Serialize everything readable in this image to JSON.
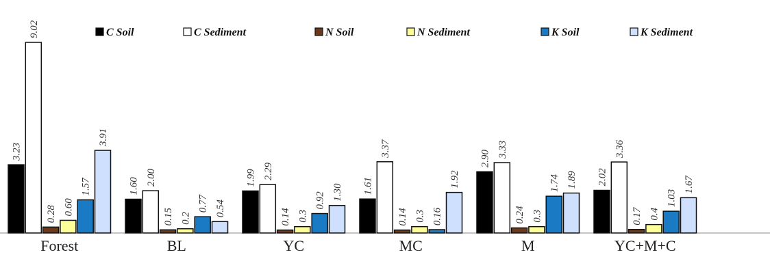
{
  "chart_data": {
    "type": "bar",
    "categories": [
      "Forest",
      "BL",
      "YC",
      "MC",
      "M",
      "YC+M+C"
    ],
    "series": [
      {
        "name": "C Soil",
        "color": "#000000",
        "values": [
          3.23,
          1.6,
          1.99,
          1.61,
          2.9,
          2.02
        ]
      },
      {
        "name": "C Sediment",
        "color": "#ffffff",
        "values": [
          9.02,
          2.0,
          2.29,
          3.37,
          3.33,
          3.36
        ]
      },
      {
        "name": "N Soil",
        "color": "#6b3a1a",
        "values": [
          0.28,
          0.15,
          0.14,
          0.14,
          0.24,
          0.17
        ]
      },
      {
        "name": "N Sediment",
        "color": "#ffff99",
        "values": [
          0.6,
          0.2,
          0.3,
          0.3,
          0.3,
          0.4
        ]
      },
      {
        "name": "K Soil",
        "color": "#1a7ac4",
        "values": [
          1.57,
          0.77,
          0.92,
          0.16,
          1.74,
          1.03
        ]
      },
      {
        "name": "K Sediment",
        "color": "#cfe0ff",
        "values": [
          3.91,
          0.54,
          1.3,
          1.92,
          1.89,
          1.67
        ]
      }
    ],
    "value_labels": [
      [
        "3.23",
        "1.60",
        "1.99",
        "1.61",
        "2.90",
        "2.02"
      ],
      [
        "9.02",
        "2.00",
        "2.29",
        "3.37",
        "3.33",
        "3.36"
      ],
      [
        "0.28",
        "0.15",
        "0.14",
        "0.14",
        "0.24",
        "0.17"
      ],
      [
        "0.60",
        "0.2",
        "0.3",
        "0.3",
        "0.3",
        "0.4"
      ],
      [
        "1.57",
        "0.77",
        "0.92",
        "0.16",
        "1.74",
        "1.03"
      ],
      [
        "3.91",
        "0.54",
        "1.30",
        "1.92",
        "1.89",
        "1.67"
      ]
    ],
    "ylim": [
      0,
      9.02
    ],
    "grid": false,
    "legend_position": "top"
  }
}
